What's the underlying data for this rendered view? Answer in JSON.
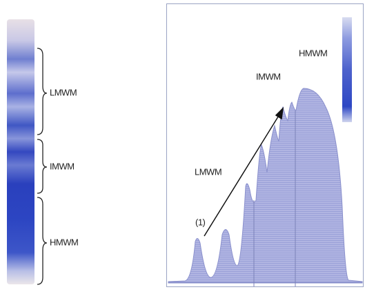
{
  "gel": {
    "labels": [
      "LMWM",
      "IMWM",
      "HMWM"
    ]
  },
  "densitometry": {
    "labels": [
      "HMWM",
      "IMWM",
      "LMWM",
      "(1)"
    ]
  }
}
